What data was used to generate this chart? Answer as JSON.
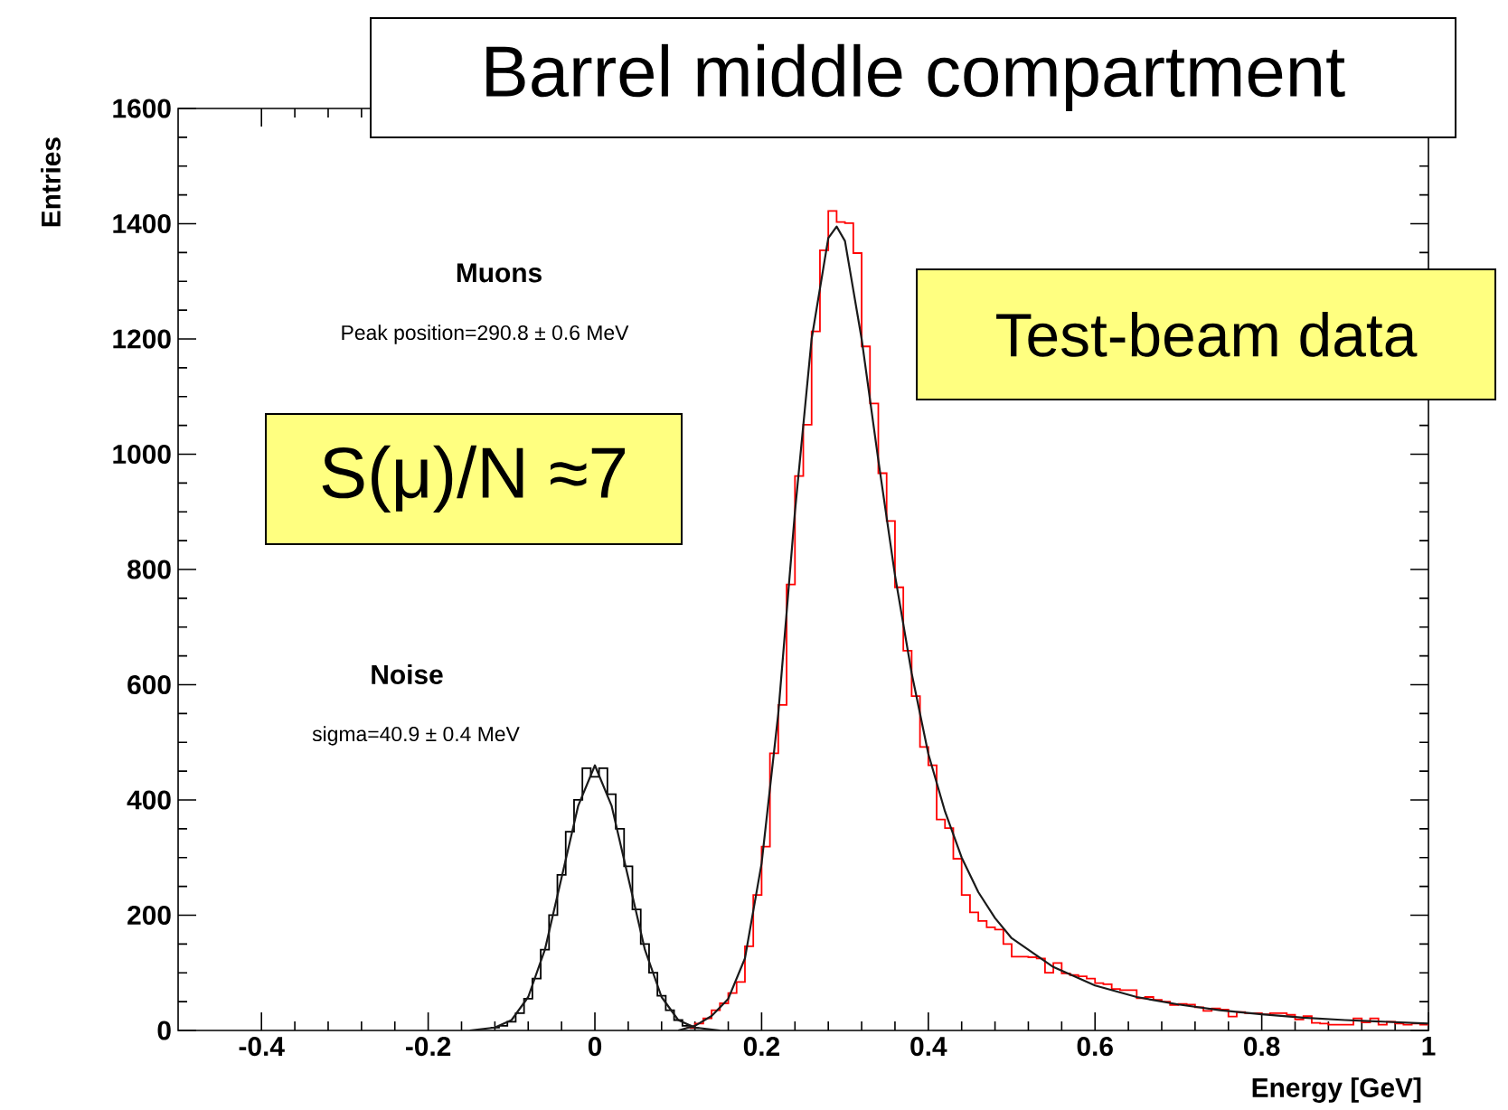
{
  "chart_data": {
    "type": "histogram",
    "title": "Barrel middle compartment",
    "xlabel": "Energy [GeV]",
    "ylabel": "Entries",
    "xlim": [
      -0.5,
      1
    ],
    "ylim": [
      0,
      1600
    ],
    "xticks": [
      -0.4,
      -0.2,
      0,
      0.2,
      0.4,
      0.6,
      0.8,
      1
    ],
    "yticks": [
      0,
      200,
      400,
      600,
      800,
      1000,
      1200,
      1400,
      1600
    ],
    "grid": false,
    "annotations": [
      "Muons",
      "Peak position=290.8 ± 0.6 MeV",
      "Noise",
      "sigma=40.9 ± 0.4 MeV",
      "S(μ)/N ≈7",
      "Test-beam data"
    ],
    "series": [
      {
        "color": "#000000",
        "bins": [
          -0.125,
          -0.115,
          -0.105,
          -0.095,
          -0.085,
          -0.075,
          -0.065,
          -0.055,
          -0.045,
          -0.035,
          -0.025,
          -0.015,
          -0.005,
          0.005,
          0.015,
          0.025,
          0.035,
          0.045,
          0.055,
          0.065,
          0.075,
          0.085,
          0.095,
          0.105,
          0.115,
          0.125
        ],
        "values": [
          5,
          8,
          15,
          30,
          55,
          90,
          140,
          200,
          270,
          345,
          400,
          455,
          440,
          455,
          410,
          350,
          285,
          210,
          150,
          100,
          60,
          35,
          18,
          8,
          4
        ]
      },
      {
        "color": "#ff0000",
        "bins": [
          0.11,
          0.12,
          0.13,
          0.14,
          0.15,
          0.16,
          0.17,
          0.18,
          0.19,
          0.2,
          0.21,
          0.22,
          0.23,
          0.24,
          0.25,
          0.26,
          0.27,
          0.28,
          0.29,
          0.3,
          0.31,
          0.32,
          0.33,
          0.34,
          0.35,
          0.36,
          0.37,
          0.38,
          0.39,
          0.4,
          0.41,
          0.42,
          0.43,
          0.44,
          0.45,
          0.46,
          0.47,
          0.48,
          0.49,
          0.5,
          0.51,
          0.52,
          0.53,
          0.54,
          0.55,
          0.56,
          0.57,
          0.58,
          0.59,
          0.6,
          0.61,
          0.62,
          0.63,
          0.64,
          0.65,
          0.66,
          0.67,
          0.68,
          0.69,
          0.7,
          0.71,
          0.72,
          0.73,
          0.74,
          0.75,
          0.76,
          0.77,
          0.78,
          0.79,
          0.8,
          0.81,
          0.82,
          0.83,
          0.84,
          0.85,
          0.86,
          0.87,
          0.88,
          0.89,
          0.9,
          0.91,
          0.92,
          0.93,
          0.94,
          0.95,
          0.96,
          0.97,
          0.98,
          0.99,
          1.0
        ],
        "values": [
          5,
          12,
          21,
          35,
          47,
          65,
          84,
          146,
          235,
          319,
          481,
          565,
          774,
          962,
          1051,
          1213,
          1354,
          1422,
          1403,
          1401,
          1349,
          1187,
          1088,
          967,
          884,
          769,
          659,
          580,
          492,
          460,
          366,
          351,
          298,
          235,
          205,
          190,
          179,
          175,
          150,
          128,
          128,
          127,
          125,
          100,
          117,
          99,
          96,
          94,
          90,
          82,
          80,
          72,
          70,
          70,
          56,
          58,
          53,
          50,
          44,
          46,
          45,
          40,
          34,
          38,
          36,
          24,
          32,
          30,
          30,
          28,
          30,
          30,
          27,
          19,
          25,
          13,
          12,
          10,
          10,
          10,
          21,
          14,
          21,
          10,
          15,
          12,
          10,
          12,
          10
        ]
      },
      {
        "type": "line",
        "color": "#1a1a1a",
        "x": [
          -0.15,
          -0.12,
          -0.1,
          -0.08,
          -0.06,
          -0.04,
          -0.02,
          0,
          0.02,
          0.04,
          0.06,
          0.08,
          0.1,
          0.12,
          0.15
        ],
        "values": [
          0,
          5,
          18,
          58,
          140,
          265,
          390,
          460,
          390,
          265,
          140,
          58,
          18,
          5,
          0
        ]
      },
      {
        "type": "line",
        "color": "#1a1a1a",
        "x": [
          0.1,
          0.12,
          0.14,
          0.16,
          0.18,
          0.2,
          0.22,
          0.24,
          0.26,
          0.28,
          0.29,
          0.3,
          0.32,
          0.34,
          0.36,
          0.38,
          0.4,
          0.42,
          0.44,
          0.46,
          0.48,
          0.5,
          0.55,
          0.6,
          0.65,
          0.7,
          0.75,
          0.8,
          0.85,
          0.9,
          0.95,
          1.0
        ],
        "values": [
          0,
          8,
          25,
          55,
          125,
          290,
          550,
          900,
          1200,
          1375,
          1395,
          1370,
          1200,
          990,
          790,
          620,
          480,
          380,
          300,
          240,
          195,
          160,
          110,
          78,
          58,
          45,
          35,
          28,
          22,
          18,
          15,
          12
        ]
      }
    ]
  }
}
